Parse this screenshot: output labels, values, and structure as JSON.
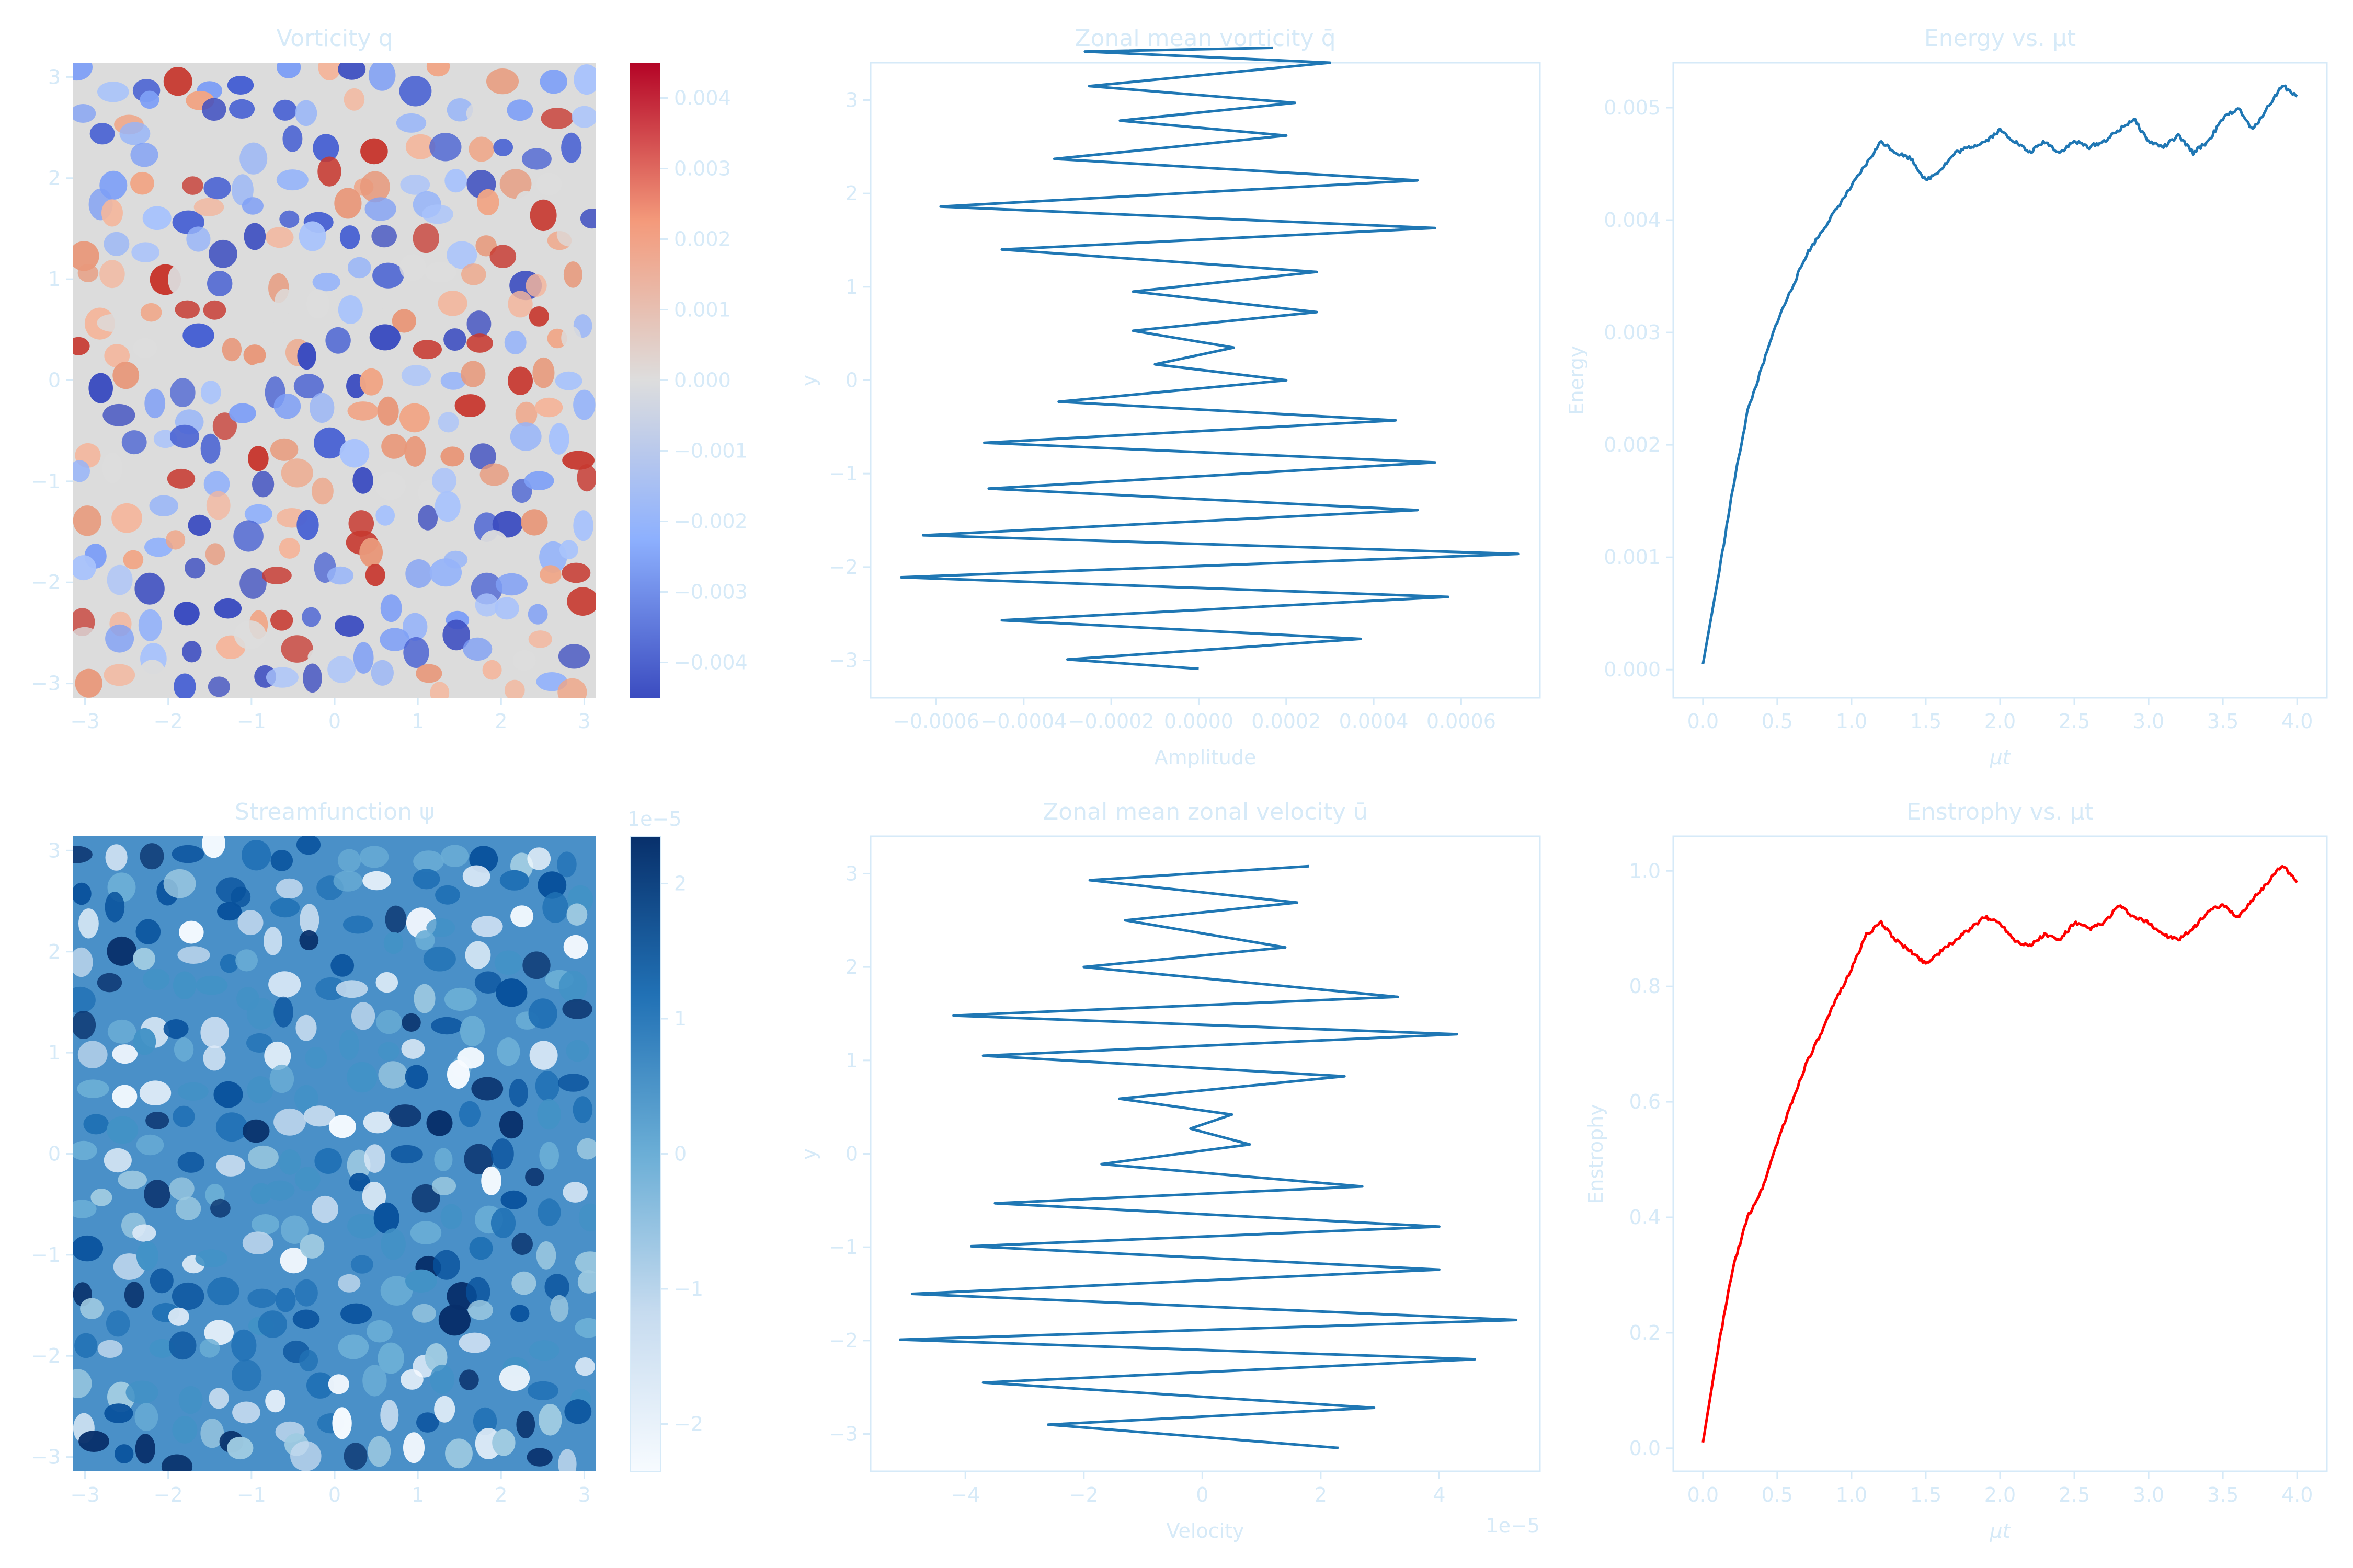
{
  "colors": {
    "text": "#d6eaf8",
    "spine": "#d6eaf8",
    "energy_line": "#1f77b4",
    "enstrophy_line": "#ff0000",
    "vorticity_colormap": "coolwarm",
    "streamfunction_colormap": "Blues"
  },
  "chart_data": [
    {
      "id": "vorticity",
      "type": "heatmap",
      "title": "Vorticity q",
      "xlabel": "",
      "ylabel": "",
      "xlim": [
        -3.1416,
        3.1416
      ],
      "ylim": [
        -3.1416,
        3.1416
      ],
      "xticks": [
        -3,
        -2,
        -1,
        0,
        1,
        2,
        3
      ],
      "yticks": [
        -3,
        -2,
        -1,
        0,
        1,
        2,
        3
      ],
      "colorbar": {
        "vmin": -0.0045,
        "vmax": 0.0045,
        "ticks": [
          -0.004,
          -0.003,
          -0.002,
          -0.001,
          0.0,
          0.001,
          0.002,
          0.003,
          0.004
        ],
        "tick_labels": [
          "−0.004",
          "−0.003",
          "−0.002",
          "−0.001",
          "0.000",
          "0.001",
          "0.002",
          "0.003",
          "0.004"
        ],
        "offset_text": ""
      }
    },
    {
      "id": "zonal_vorticity",
      "type": "line",
      "title": "Zonal mean vorticity q̄",
      "xlabel": "Amplitude",
      "ylabel": "y",
      "xlim": [
        -0.00075,
        0.00078
      ],
      "ylim": [
        -3.4,
        3.4
      ],
      "xticks": [
        -0.0006,
        -0.0004,
        -0.0002,
        0.0,
        0.0002,
        0.0004,
        0.0006
      ],
      "xtick_labels": [
        "−0.0006",
        "−0.0004",
        "−0.0002",
        "0.0000",
        "0.0002",
        "0.0004",
        "0.0006"
      ],
      "yticks": [
        -3,
        -2,
        -1,
        0,
        1,
        2,
        3
      ],
      "x": [
        0.0,
        -0.0003,
        0.00037,
        -0.00045,
        0.00057,
        -0.00068,
        0.00073,
        -0.00063,
        0.0005,
        -0.00048,
        0.00054,
        -0.00049,
        0.00045,
        -0.00032,
        0.0002,
        -0.0001,
        8e-05,
        -0.00015,
        0.00027,
        -0.00015,
        0.00027,
        -0.00045,
        0.00054,
        -0.00059,
        0.0005,
        -0.00033,
        0.0002,
        -0.00018,
        0.00022,
        -0.00025,
        0.0003,
        -0.00026,
        0.00017
      ],
      "y": [
        -3.09,
        -2.99,
        -2.77,
        -2.57,
        -2.32,
        -2.11,
        -1.86,
        -1.66,
        -1.39,
        -1.16,
        -0.88,
        -0.67,
        -0.43,
        -0.23,
        0.0,
        0.17,
        0.35,
        0.53,
        0.73,
        0.95,
        1.16,
        1.4,
        1.63,
        1.86,
        2.14,
        2.37,
        2.62,
        2.78,
        2.97,
        3.15,
        3.4,
        3.52,
        3.56
      ],
      "offset_text": ""
    },
    {
      "id": "energy",
      "type": "line",
      "title": "Energy vs. μt",
      "xlabel": "μt",
      "ylabel": "Energy",
      "xlim": [
        -0.2,
        4.2
      ],
      "ylim": [
        -0.00025,
        0.0054
      ],
      "xticks": [
        0.0,
        0.5,
        1.0,
        1.5,
        2.0,
        2.5,
        3.0,
        3.5,
        4.0
      ],
      "xtick_labels": [
        "0.0",
        "0.5",
        "1.0",
        "1.5",
        "2.0",
        "2.5",
        "3.0",
        "3.5",
        "4.0"
      ],
      "yticks": [
        0.0,
        0.001,
        0.002,
        0.003,
        0.004,
        0.005
      ],
      "ytick_labels": [
        "0.000",
        "0.001",
        "0.002",
        "0.003",
        "0.004",
        "0.005"
      ],
      "x": [
        0.0,
        0.1,
        0.2,
        0.3,
        0.4,
        0.5,
        0.6,
        0.7,
        0.8,
        0.9,
        1.0,
        1.1,
        1.2,
        1.3,
        1.4,
        1.5,
        1.6,
        1.7,
        1.8,
        1.9,
        2.0,
        2.1,
        2.2,
        2.3,
        2.4,
        2.5,
        2.6,
        2.7,
        2.8,
        2.9,
        3.0,
        3.1,
        3.2,
        3.3,
        3.4,
        3.5,
        3.6,
        3.7,
        3.8,
        3.9,
        4.0
      ],
      "y": [
        5e-05,
        0.0008,
        0.0016,
        0.0023,
        0.0027,
        0.0031,
        0.0034,
        0.0037,
        0.0039,
        0.0041,
        0.0043,
        0.0045,
        0.0047,
        0.0046,
        0.00455,
        0.00435,
        0.00445,
        0.0046,
        0.00465,
        0.0047,
        0.0048,
        0.0047,
        0.0046,
        0.0047,
        0.0046,
        0.0047,
        0.00465,
        0.0047,
        0.0048,
        0.0049,
        0.0047,
        0.00465,
        0.00475,
        0.0046,
        0.0047,
        0.0049,
        0.005,
        0.0048,
        0.005,
        0.0052,
        0.0051
      ]
    },
    {
      "id": "streamfunction",
      "type": "heatmap",
      "title": "Streamfunction ψ",
      "xlabel": "",
      "ylabel": "",
      "xlim": [
        -3.1416,
        3.1416
      ],
      "ylim": [
        -3.1416,
        3.1416
      ],
      "xticks": [
        -3,
        -2,
        -1,
        0,
        1,
        2,
        3
      ],
      "yticks": [
        -3,
        -2,
        -1,
        0,
        1,
        2,
        3
      ],
      "colorbar": {
        "vmin": -2.35,
        "vmax": 2.35,
        "ticks": [
          -2,
          -1,
          0,
          1,
          2
        ],
        "tick_labels": [
          "−2",
          "−1",
          "0",
          "1",
          "2"
        ],
        "offset_text": "1e−5"
      }
    },
    {
      "id": "zonal_velocity",
      "type": "line",
      "title": "Zonal mean zonal velocity ū",
      "xlabel": "Velocity",
      "ylabel": "y",
      "xlim": [
        -5.6,
        5.7
      ],
      "ylim": [
        -3.4,
        3.4
      ],
      "xticks": [
        -4,
        -2,
        0,
        2,
        4
      ],
      "xtick_labels": [
        "−4",
        "−2",
        "0",
        "2",
        "4"
      ],
      "yticks": [
        -3,
        -2,
        -1,
        0,
        1,
        2,
        3
      ],
      "x": [
        2.3,
        -2.6,
        2.9,
        -3.7,
        4.6,
        -5.1,
        5.3,
        -4.9,
        4.0,
        -3.9,
        4.0,
        -3.5,
        2.7,
        -1.7,
        0.8,
        -0.2,
        0.5,
        -1.4,
        2.4,
        -3.7,
        4.3,
        -4.2,
        3.3,
        -2.0,
        1.4,
        -1.3,
        1.6,
        -1.9,
        1.8
      ],
      "y": [
        -3.15,
        -2.9,
        -2.72,
        -2.45,
        -2.2,
        -1.99,
        -1.78,
        -1.5,
        -1.24,
        -0.99,
        -0.78,
        -0.53,
        -0.35,
        -0.11,
        0.1,
        0.27,
        0.42,
        0.59,
        0.83,
        1.05,
        1.28,
        1.48,
        1.68,
        2.0,
        2.21,
        2.5,
        2.69,
        2.93,
        3.08
      ],
      "offset_text": "1e−5"
    },
    {
      "id": "enstrophy",
      "type": "line",
      "title": "Enstrophy vs. μt",
      "xlabel": "μt",
      "ylabel": "Enstrophy",
      "xlim": [
        -0.2,
        4.2
      ],
      "ylim": [
        -0.04,
        1.06
      ],
      "xticks": [
        0.0,
        0.5,
        1.0,
        1.5,
        2.0,
        2.5,
        3.0,
        3.5,
        4.0
      ],
      "xtick_labels": [
        "0.0",
        "0.5",
        "1.0",
        "1.5",
        "2.0",
        "2.5",
        "3.0",
        "3.5",
        "4.0"
      ],
      "yticks": [
        0.0,
        0.2,
        0.4,
        0.6,
        0.8,
        1.0
      ],
      "ytick_labels": [
        "0.0",
        "0.2",
        "0.4",
        "0.6",
        "0.8",
        "1.0"
      ],
      "x": [
        0.0,
        0.1,
        0.2,
        0.3,
        0.4,
        0.5,
        0.6,
        0.7,
        0.8,
        0.9,
        1.0,
        1.1,
        1.2,
        1.3,
        1.4,
        1.5,
        1.6,
        1.7,
        1.8,
        1.9,
        2.0,
        2.1,
        2.2,
        2.3,
        2.4,
        2.5,
        2.6,
        2.7,
        2.8,
        2.9,
        3.0,
        3.1,
        3.2,
        3.3,
        3.4,
        3.5,
        3.6,
        3.7,
        3.8,
        3.9,
        4.0
      ],
      "y": [
        0.01,
        0.17,
        0.31,
        0.4,
        0.45,
        0.53,
        0.6,
        0.67,
        0.72,
        0.78,
        0.83,
        0.89,
        0.91,
        0.88,
        0.86,
        0.84,
        0.86,
        0.88,
        0.9,
        0.92,
        0.91,
        0.88,
        0.87,
        0.89,
        0.88,
        0.91,
        0.9,
        0.91,
        0.94,
        0.92,
        0.91,
        0.89,
        0.88,
        0.9,
        0.93,
        0.94,
        0.92,
        0.95,
        0.98,
        1.01,
        0.98
      ]
    }
  ]
}
